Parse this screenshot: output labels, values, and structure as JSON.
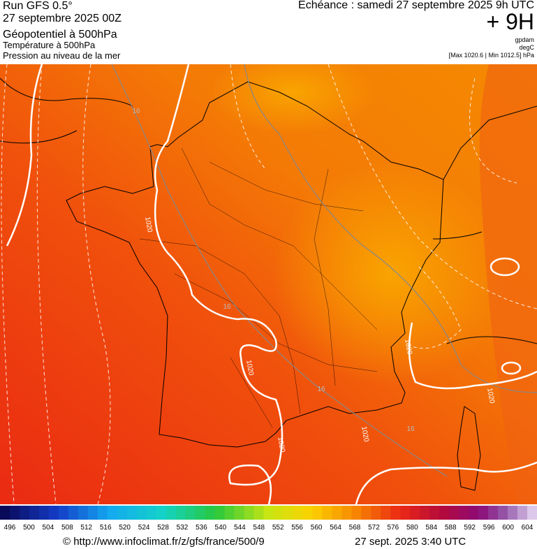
{
  "header": {
    "run": "Run GFS 0.5°",
    "date": "27 septembre 2025 00Z",
    "field1": "Géopotentiel à 500hPa",
    "field2": "Température à 500hPa",
    "field3": "Pression au niveau de la mer",
    "echeance": "Echéance : samedi 27 septembre 2025 9h UTC",
    "lead": "+ 9H",
    "unit1": "gpdam",
    "unit2": "degC",
    "range": "[Max 1020.6 | Min 1012.5] hPa"
  },
  "map": {
    "isobar_labels": [
      "1020",
      "1020",
      "1020",
      "1020",
      "1020",
      "1020"
    ],
    "isotherm_labels": [
      "16",
      "16",
      "16",
      "16"
    ]
  },
  "colorbar": {
    "labels": [
      496,
      500,
      504,
      508,
      512,
      516,
      520,
      524,
      528,
      532,
      536,
      540,
      544,
      548,
      552,
      556,
      560,
      564,
      568,
      572,
      576,
      580,
      584,
      588,
      592,
      596,
      600,
      604
    ]
  },
  "footer": {
    "source": "© http://www.infoclimat.fr/z/gfs/france/500/9",
    "time": "27 sept. 2025  3:40 UTC"
  }
}
